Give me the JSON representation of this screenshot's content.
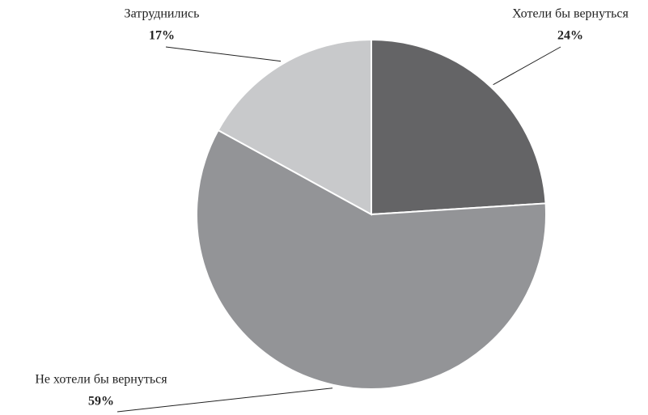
{
  "chart_data": {
    "type": "pie",
    "categories": [
      "Хотели бы вернуться",
      "Не хотели бы вернуться",
      "Затруднились"
    ],
    "values": [
      24,
      59,
      17
    ],
    "value_labels": [
      "24%",
      "59%",
      "17%"
    ],
    "colors": [
      "#646466",
      "#939497",
      "#c8c9cb"
    ]
  }
}
